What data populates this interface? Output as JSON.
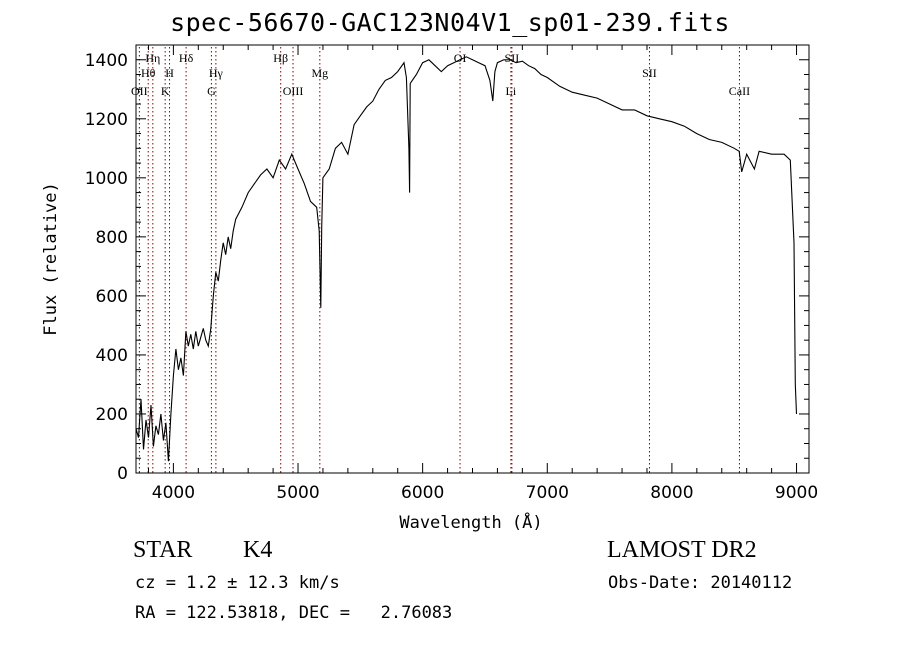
{
  "chart_data": {
    "type": "line",
    "title": "spec-56670-GAC123N04V1_sp01-239.fits",
    "xlabel": "Wavelength (Å)",
    "ylabel": "Flux (relative)",
    "xlim": [
      3700,
      9100
    ],
    "ylim": [
      0,
      1450
    ],
    "xticks": [
      4000,
      5000,
      6000,
      7000,
      8000,
      9000
    ],
    "yticks": [
      0,
      200,
      400,
      600,
      800,
      1000,
      1200,
      1400
    ],
    "grid": false,
    "line_color": "#000000",
    "marker_color": "#8b0000",
    "spectrum": {
      "x": [
        3700,
        3720,
        3740,
        3760,
        3780,
        3800,
        3820,
        3840,
        3860,
        3880,
        3900,
        3920,
        3940,
        3960,
        3980,
        4000,
        4020,
        4040,
        4060,
        4080,
        4100,
        4120,
        4140,
        4160,
        4180,
        4200,
        4220,
        4240,
        4260,
        4280,
        4300,
        4320,
        4340,
        4360,
        4380,
        4400,
        4420,
        4440,
        4460,
        4480,
        4500,
        4550,
        4600,
        4650,
        4700,
        4750,
        4800,
        4850,
        4900,
        4950,
        5000,
        5050,
        5100,
        5150,
        5170,
        5183,
        5190,
        5200,
        5250,
        5300,
        5350,
        5400,
        5450,
        5500,
        5550,
        5600,
        5650,
        5700,
        5750,
        5800,
        5850,
        5870,
        5890,
        5895,
        5900,
        5950,
        6000,
        6050,
        6100,
        6150,
        6200,
        6250,
        6300,
        6350,
        6400,
        6450,
        6500,
        6540,
        6563,
        6580,
        6600,
        6650,
        6700,
        6750,
        6800,
        6850,
        6900,
        6950,
        7000,
        7100,
        7200,
        7300,
        7400,
        7500,
        7600,
        7700,
        7800,
        7900,
        8000,
        8100,
        8200,
        8300,
        8400,
        8500,
        8540,
        8560,
        8600,
        8662,
        8700,
        8800,
        8900,
        8950,
        8980,
        8990,
        9000
      ],
      "y": [
        150,
        120,
        250,
        80,
        180,
        120,
        230,
        90,
        160,
        130,
        200,
        110,
        170,
        40,
        200,
        330,
        420,
        350,
        390,
        330,
        480,
        430,
        470,
        420,
        480,
        430,
        460,
        490,
        450,
        430,
        490,
        600,
        680,
        650,
        720,
        780,
        740,
        800,
        760,
        820,
        860,
        900,
        950,
        980,
        1010,
        1030,
        1000,
        1060,
        1030,
        1080,
        1030,
        980,
        920,
        900,
        820,
        560,
        830,
        1000,
        1030,
        1100,
        1120,
        1080,
        1180,
        1210,
        1240,
        1260,
        1300,
        1330,
        1340,
        1360,
        1390,
        1340,
        1100,
        950,
        1320,
        1350,
        1390,
        1400,
        1380,
        1360,
        1380,
        1390,
        1400,
        1410,
        1400,
        1390,
        1380,
        1330,
        1260,
        1360,
        1390,
        1400,
        1400,
        1390,
        1395,
        1380,
        1370,
        1350,
        1340,
        1310,
        1290,
        1280,
        1270,
        1250,
        1230,
        1230,
        1210,
        1200,
        1190,
        1175,
        1150,
        1130,
        1120,
        1100,
        1090,
        1020,
        1080,
        1030,
        1090,
        1080,
        1080,
        1060,
        780,
        300,
        200
      ]
    },
    "lines": [
      {
        "name": "OII",
        "x": 3727,
        "row": 3
      },
      {
        "name": "Hθ",
        "x": 3798,
        "row": 2
      },
      {
        "name": "Hη",
        "x": 3835,
        "row": 0
      },
      {
        "name": "K",
        "x": 3934,
        "row": 3
      },
      {
        "name": "H",
        "x": 3969,
        "row": 2
      },
      {
        "name": "Hδ",
        "x": 4102,
        "row": 0
      },
      {
        "name": "G",
        "x": 4305,
        "row": 3
      },
      {
        "name": "Hγ",
        "x": 4341,
        "row": 2
      },
      {
        "name": "Hβ",
        "x": 4861,
        "row": 0
      },
      {
        "name": "OIII",
        "x": 4960,
        "row": 3
      },
      {
        "name": "Mg",
        "x": 5175,
        "row": 2
      },
      {
        "name": "OI",
        "x": 6300,
        "row": 0
      },
      {
        "name": "SII",
        "x": 6716,
        "row": 0
      },
      {
        "name": "Li",
        "x": 6708,
        "row": 3
      },
      {
        "name": "SII",
        "x": 7820,
        "row": 2
      },
      {
        "name": "CaII",
        "x": 8542,
        "row": 3
      }
    ]
  },
  "object": {
    "class": "STAR",
    "subclass": "K4",
    "survey": "LAMOST DR2",
    "redshift_text": "cz = 1.2 ± 12.3 km/s",
    "obs_date_text": "Obs-Date: 20140112",
    "coords_text": "RA = 122.53818, DEC =   2.76083"
  }
}
